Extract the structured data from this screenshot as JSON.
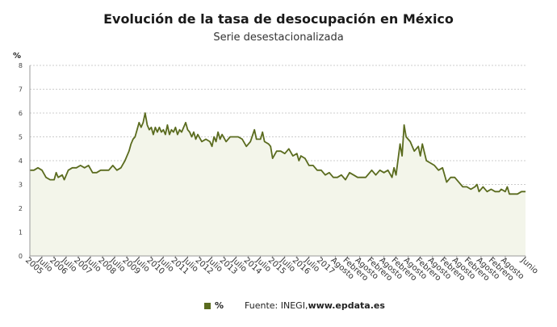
{
  "header": {
    "title": "Evolución de la tasa de desocupación en México",
    "subtitle": "Serie desestacionalizada"
  },
  "legend": {
    "series_label": "%",
    "source_prefix": "Fuente: INEGI, ",
    "source_site": "www.epdata.es"
  },
  "colors": {
    "line": "#5a6b1e",
    "area": "#f3f5ea",
    "grid": "#cccccc"
  },
  "chart_data": {
    "type": "area",
    "title": "Evolución de la tasa de desocupación en México",
    "subtitle": "Serie desestacionalizada",
    "ylabel": "%",
    "ylim": [
      0,
      8
    ],
    "yticks": [
      0,
      1,
      2,
      3,
      4,
      5,
      6,
      7,
      8
    ],
    "grid": true,
    "legend_position": "bottom",
    "xlim": [
      "2005-01",
      "2025-06"
    ],
    "xticks": [
      {
        "date": "2005-01",
        "label": "2005"
      },
      {
        "date": "2005-07",
        "label": "Julio"
      },
      {
        "date": "2006-01",
        "label": "2006"
      },
      {
        "date": "2006-07",
        "label": "Julio"
      },
      {
        "date": "2007-01",
        "label": "2007"
      },
      {
        "date": "2007-07",
        "label": "Julio"
      },
      {
        "date": "2008-01",
        "label": "2008"
      },
      {
        "date": "2008-07",
        "label": "Julio"
      },
      {
        "date": "2009-01",
        "label": "2009"
      },
      {
        "date": "2009-07",
        "label": "Julio"
      },
      {
        "date": "2010-01",
        "label": "2010"
      },
      {
        "date": "2010-07",
        "label": "Julio"
      },
      {
        "date": "2011-01",
        "label": "2011"
      },
      {
        "date": "2011-07",
        "label": "Julio"
      },
      {
        "date": "2012-01",
        "label": "2012"
      },
      {
        "date": "2012-07",
        "label": "Julio"
      },
      {
        "date": "2013-01",
        "label": "2013"
      },
      {
        "date": "2013-07",
        "label": "Julio"
      },
      {
        "date": "2014-01",
        "label": "2014"
      },
      {
        "date": "2014-07",
        "label": "Julio"
      },
      {
        "date": "2015-01",
        "label": "2015"
      },
      {
        "date": "2015-07",
        "label": "Julio"
      },
      {
        "date": "2016-01",
        "label": "2016"
      },
      {
        "date": "2016-07",
        "label": "Julio"
      },
      {
        "date": "2017-01",
        "label": "2017"
      },
      {
        "date": "2017-08",
        "label": "Agosto"
      },
      {
        "date": "2018-02",
        "label": "Febrero"
      },
      {
        "date": "2018-08",
        "label": "Agosto"
      },
      {
        "date": "2019-02",
        "label": "Febrero"
      },
      {
        "date": "2019-08",
        "label": "Agosto"
      },
      {
        "date": "2020-02",
        "label": "Febrero"
      },
      {
        "date": "2020-08",
        "label": "Agosto"
      },
      {
        "date": "2021-02",
        "label": "Febrero"
      },
      {
        "date": "2021-08",
        "label": "Agosto"
      },
      {
        "date": "2022-02",
        "label": "Febrero"
      },
      {
        "date": "2022-08",
        "label": "Agosto"
      },
      {
        "date": "2023-02",
        "label": "Febrero"
      },
      {
        "date": "2023-08",
        "label": "Agosto"
      },
      {
        "date": "2024-02",
        "label": "Febrero"
      },
      {
        "date": "2024-08",
        "label": "Agosto"
      },
      {
        "date": "2025-06",
        "label": "Junio"
      }
    ],
    "series": [
      {
        "name": "%",
        "color": "#5a6b1e",
        "points": [
          [
            "2005-01",
            3.6
          ],
          [
            "2005-03",
            3.6
          ],
          [
            "2005-05",
            3.7
          ],
          [
            "2005-07",
            3.6
          ],
          [
            "2005-09",
            3.3
          ],
          [
            "2005-11",
            3.2
          ],
          [
            "2006-01",
            3.2
          ],
          [
            "2006-02",
            3.5
          ],
          [
            "2006-03",
            3.3
          ],
          [
            "2006-05",
            3.4
          ],
          [
            "2006-06",
            3.2
          ],
          [
            "2006-08",
            3.6
          ],
          [
            "2006-10",
            3.7
          ],
          [
            "2006-12",
            3.7
          ],
          [
            "2007-02",
            3.8
          ],
          [
            "2007-04",
            3.7
          ],
          [
            "2007-06",
            3.8
          ],
          [
            "2007-08",
            3.5
          ],
          [
            "2007-10",
            3.5
          ],
          [
            "2007-12",
            3.6
          ],
          [
            "2008-02",
            3.6
          ],
          [
            "2008-04",
            3.6
          ],
          [
            "2008-06",
            3.8
          ],
          [
            "2008-08",
            3.6
          ],
          [
            "2008-10",
            3.7
          ],
          [
            "2008-12",
            4.0
          ],
          [
            "2009-02",
            4.4
          ],
          [
            "2009-03",
            4.7
          ],
          [
            "2009-04",
            4.9
          ],
          [
            "2009-05",
            5.0
          ],
          [
            "2009-06",
            5.3
          ],
          [
            "2009-07",
            5.6
          ],
          [
            "2009-08",
            5.4
          ],
          [
            "2009-09",
            5.6
          ],
          [
            "2009-10",
            6.0
          ],
          [
            "2009-11",
            5.5
          ],
          [
            "2009-12",
            5.3
          ],
          [
            "2010-01",
            5.4
          ],
          [
            "2010-02",
            5.1
          ],
          [
            "2010-03",
            5.4
          ],
          [
            "2010-04",
            5.2
          ],
          [
            "2010-05",
            5.4
          ],
          [
            "2010-06",
            5.2
          ],
          [
            "2010-07",
            5.3
          ],
          [
            "2010-08",
            5.1
          ],
          [
            "2010-09",
            5.5
          ],
          [
            "2010-10",
            5.1
          ],
          [
            "2010-11",
            5.3
          ],
          [
            "2010-12",
            5.2
          ],
          [
            "2011-01",
            5.4
          ],
          [
            "2011-02",
            5.1
          ],
          [
            "2011-03",
            5.3
          ],
          [
            "2011-04",
            5.2
          ],
          [
            "2011-05",
            5.4
          ],
          [
            "2011-06",
            5.6
          ],
          [
            "2011-07",
            5.3
          ],
          [
            "2011-08",
            5.2
          ],
          [
            "2011-09",
            5.0
          ],
          [
            "2011-10",
            5.2
          ],
          [
            "2011-11",
            4.9
          ],
          [
            "2011-12",
            5.1
          ],
          [
            "2012-02",
            4.8
          ],
          [
            "2012-04",
            4.9
          ],
          [
            "2012-06",
            4.8
          ],
          [
            "2012-07",
            4.6
          ],
          [
            "2012-08",
            5.0
          ],
          [
            "2012-09",
            4.8
          ],
          [
            "2012-10",
            5.2
          ],
          [
            "2012-11",
            4.9
          ],
          [
            "2012-12",
            5.1
          ],
          [
            "2013-02",
            4.8
          ],
          [
            "2013-04",
            5.0
          ],
          [
            "2013-06",
            5.0
          ],
          [
            "2013-08",
            5.0
          ],
          [
            "2013-10",
            4.9
          ],
          [
            "2013-12",
            4.6
          ],
          [
            "2014-02",
            4.8
          ],
          [
            "2014-04",
            5.3
          ],
          [
            "2014-05",
            4.9
          ],
          [
            "2014-07",
            4.9
          ],
          [
            "2014-08",
            5.2
          ],
          [
            "2014-09",
            4.8
          ],
          [
            "2014-11",
            4.7
          ],
          [
            "2014-12",
            4.6
          ],
          [
            "2015-01",
            4.1
          ],
          [
            "2015-03",
            4.4
          ],
          [
            "2015-05",
            4.4
          ],
          [
            "2015-07",
            4.3
          ],
          [
            "2015-09",
            4.5
          ],
          [
            "2015-11",
            4.2
          ],
          [
            "2016-01",
            4.3
          ],
          [
            "2016-02",
            4.0
          ],
          [
            "2016-03",
            4.2
          ],
          [
            "2016-05",
            4.1
          ],
          [
            "2016-07",
            3.8
          ],
          [
            "2016-09",
            3.8
          ],
          [
            "2016-11",
            3.6
          ],
          [
            "2017-01",
            3.6
          ],
          [
            "2017-03",
            3.4
          ],
          [
            "2017-05",
            3.5
          ],
          [
            "2017-07",
            3.3
          ],
          [
            "2017-09",
            3.3
          ],
          [
            "2017-11",
            3.4
          ],
          [
            "2018-01",
            3.2
          ],
          [
            "2018-03",
            3.5
          ],
          [
            "2018-05",
            3.4
          ],
          [
            "2018-07",
            3.3
          ],
          [
            "2018-09",
            3.3
          ],
          [
            "2018-11",
            3.3
          ],
          [
            "2019-01",
            3.5
          ],
          [
            "2019-02",
            3.6
          ],
          [
            "2019-04",
            3.4
          ],
          [
            "2019-06",
            3.6
          ],
          [
            "2019-08",
            3.5
          ],
          [
            "2019-10",
            3.6
          ],
          [
            "2019-12",
            3.3
          ],
          [
            "2020-01",
            3.7
          ],
          [
            "2020-02",
            3.4
          ],
          [
            "2020-04",
            4.7
          ],
          [
            "2020-05",
            4.2
          ],
          [
            "2020-06",
            5.5
          ],
          [
            "2020-07",
            5.0
          ],
          [
            "2020-09",
            4.8
          ],
          [
            "2020-11",
            4.4
          ],
          [
            "2021-01",
            4.6
          ],
          [
            "2021-02",
            4.2
          ],
          [
            "2021-03",
            4.7
          ],
          [
            "2021-05",
            4.0
          ],
          [
            "2021-07",
            3.9
          ],
          [
            "2021-09",
            3.8
          ],
          [
            "2021-11",
            3.6
          ],
          [
            "2022-01",
            3.7
          ],
          [
            "2022-03",
            3.1
          ],
          [
            "2022-05",
            3.3
          ],
          [
            "2022-07",
            3.3
          ],
          [
            "2022-09",
            3.1
          ],
          [
            "2022-11",
            2.9
          ],
          [
            "2023-01",
            2.9
          ],
          [
            "2023-03",
            2.8
          ],
          [
            "2023-05",
            2.9
          ],
          [
            "2023-06",
            3.0
          ],
          [
            "2023-07",
            2.7
          ],
          [
            "2023-09",
            2.9
          ],
          [
            "2023-11",
            2.7
          ],
          [
            "2024-01",
            2.8
          ],
          [
            "2024-03",
            2.7
          ],
          [
            "2024-05",
            2.7
          ],
          [
            "2024-06",
            2.8
          ],
          [
            "2024-08",
            2.7
          ],
          [
            "2024-09",
            2.9
          ],
          [
            "2024-10",
            2.6
          ],
          [
            "2024-12",
            2.6
          ],
          [
            "2025-02",
            2.6
          ],
          [
            "2025-04",
            2.7
          ],
          [
            "2025-06",
            2.7
          ]
        ]
      }
    ]
  }
}
